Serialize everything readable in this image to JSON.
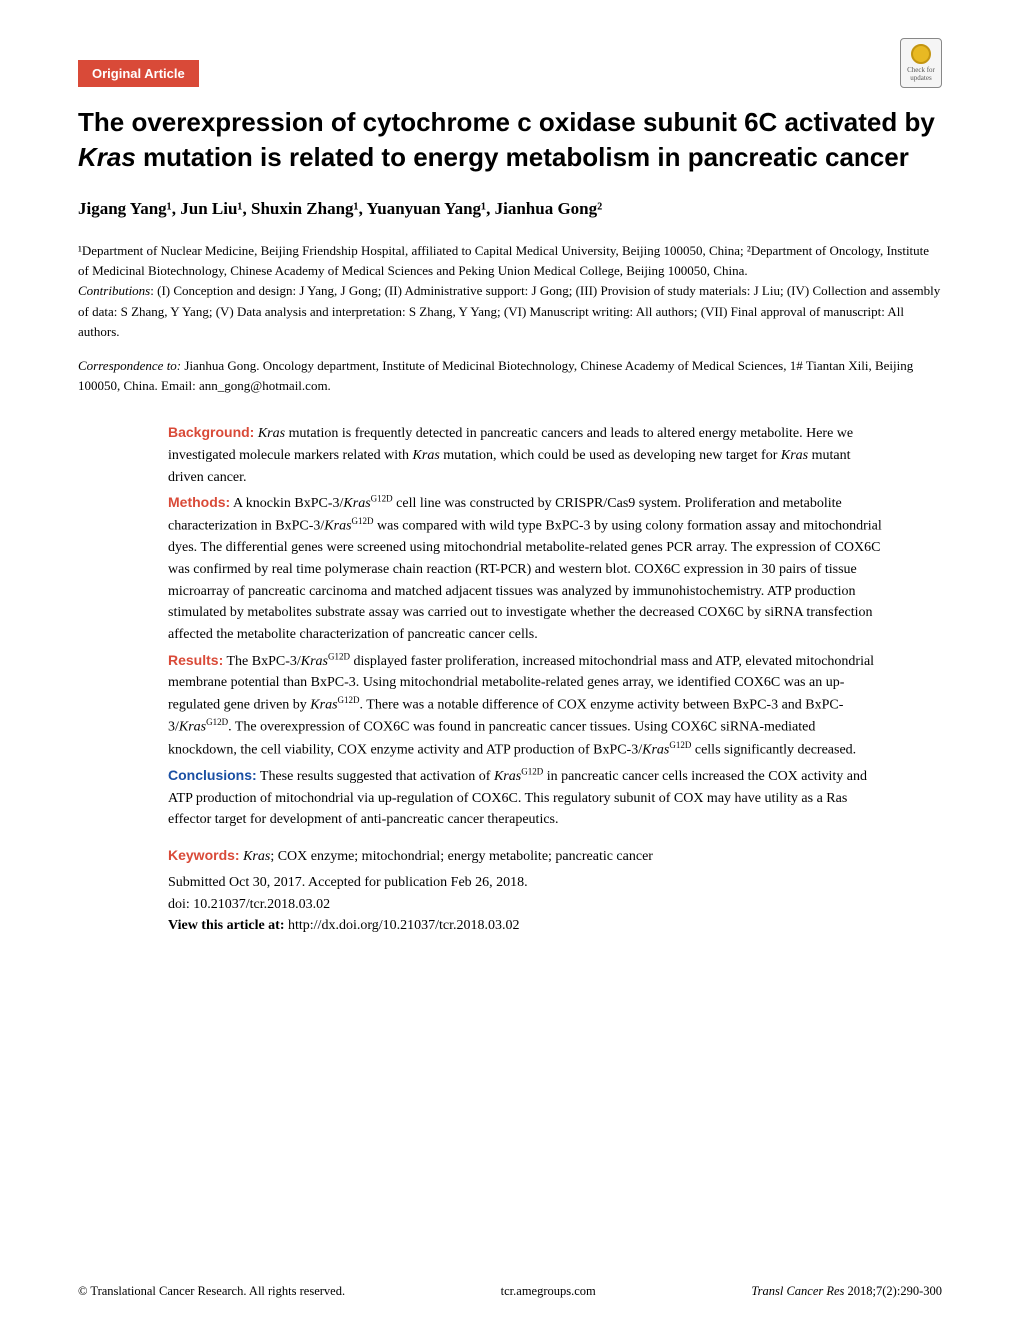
{
  "badge": {
    "label": "Original Article"
  },
  "check_badge": {
    "line1": "Check for",
    "line2": "updates"
  },
  "title": {
    "pre": "The overexpression of cytochrome c oxidase subunit 6C activated by ",
    "italic": "Kras",
    "post": " mutation is related to energy metabolism in pancreatic cancer"
  },
  "authors": "Jigang Yang¹, Jun Liu¹, Shuxin Zhang¹, Yuanyuan Yang¹, Jianhua Gong²",
  "affiliations": "¹Department of Nuclear Medicine, Beijing Friendship Hospital, affiliated to Capital Medical University, Beijing 100050, China; ²Department of Oncology, Institute of Medicinal Biotechnology, Chinese Academy of Medical Sciences and Peking Union Medical College, Beijing 100050, China.",
  "contributions_label": "Contributions",
  "contributions": ": (I) Conception and design: J Yang, J Gong; (II) Administrative support: J Gong; (III) Provision of study materials: J Liu; (IV) Collection and assembly of data: S Zhang, Y Yang; (V) Data analysis and interpretation: S Zhang, Y Yang; (VI) Manuscript writing: All authors; (VII) Final approval of manuscript: All authors.",
  "correspondence_label": "Correspondence to:",
  "correspondence": " Jianhua Gong. Oncology department, Institute of Medicinal Biotechnology, Chinese Academy of Medical Sciences, 1# Tiantan Xili, Beijing 100050, China. Email: ann_gong@hotmail.com.",
  "abstract": {
    "background": {
      "label": "Background:",
      "pre": " ",
      "ital1": "Kras",
      "mid1": " mutation is frequently detected in pancreatic cancers and leads to altered energy metabolite. Here we investigated molecule markers related with ",
      "ital2": "Kras",
      "mid2": " mutation, which could be used as developing new target for ",
      "ital3": "Kras",
      "post": " mutant driven cancer."
    },
    "methods": {
      "label": "Methods:",
      "pre": " A knockin BxPC-3/",
      "ital1": "Kras",
      "sup1": "G12D",
      "mid1": " cell line was constructed by CRISPR/Cas9 system. Proliferation and metabolite characterization in BxPC-3/",
      "ital2": "Kras",
      "sup2": "G12D",
      "post": " was compared with wild type BxPC-3 by using colony formation assay and mitochondrial dyes. The differential genes were screened using mitochondrial metabolite-related genes PCR array. The expression of COX6C was confirmed by real time polymerase chain reaction (RT-PCR) and western blot. COX6C expression in 30 pairs of tissue microarray of pancreatic carcinoma and matched adjacent tissues was analyzed by immunohistochemistry. ATP production stimulated by metabolites substrate assay was carried out to investigate whether the decreased COX6C by siRNA transfection affected the metabolite characterization of pancreatic cancer cells."
    },
    "results": {
      "label": "Results:",
      "pre": " The BxPC-3/",
      "ital1": "Kras",
      "sup1": "G12D",
      "mid1": " displayed faster proliferation, increased mitochondrial mass and ATP, elevated mitochondrial membrane potential than BxPC-3. Using mitochondrial metabolite-related genes array, we identified COX6C was an up-regulated gene driven by ",
      "ital2": "Kras",
      "sup2": "G12D",
      "mid2": ". There was a notable difference of COX enzyme activity between BxPC-3 and BxPC-3/",
      "ital3": "Kras",
      "sup3": "G12D",
      "mid3": ". The overexpression of COX6C was found in pancreatic cancer tissues. Using COX6C siRNA-mediated knockdown, the cell viability, COX enzyme activity and ATP production of BxPC-3/",
      "ital4": "Kras",
      "sup4": "G12D",
      "post": " cells significantly decreased."
    },
    "conclusions": {
      "label": "Conclusions:",
      "pre": " These results suggested that activation of ",
      "ital1": "Kras",
      "sup1": "G12D",
      "post": " in pancreatic cancer cells increased the COX activity and ATP production of mitochondrial via up-regulation of COX6C. This regulatory subunit of COX may have utility as a Ras effector target for development of anti-pancreatic cancer therapeutics."
    },
    "keywords": {
      "label": "Keywords:",
      "pre": " ",
      "ital1": "Kras",
      "post": "; COX enzyme; mitochondrial; energy metabolite; pancreatic cancer"
    }
  },
  "submitted": "Submitted Oct 30, 2017. Accepted for publication Feb 26, 2018.",
  "doi": "doi: 10.21037/tcr.2018.03.02",
  "view_label": "View this article at:",
  "view_url": " http://dx.doi.org/10.21037/tcr.2018.03.02",
  "footer": {
    "left": "© Translational Cancer Research. All rights reserved.",
    "center": "tcr.amegroups.com",
    "right_ital": "Transl Cancer Res",
    "right_rest": " 2018;7(2):290-300"
  },
  "colors": {
    "accent_red": "#d94a38",
    "accent_blue": "#1a4fa3",
    "text": "#000000",
    "background": "#ffffff"
  }
}
